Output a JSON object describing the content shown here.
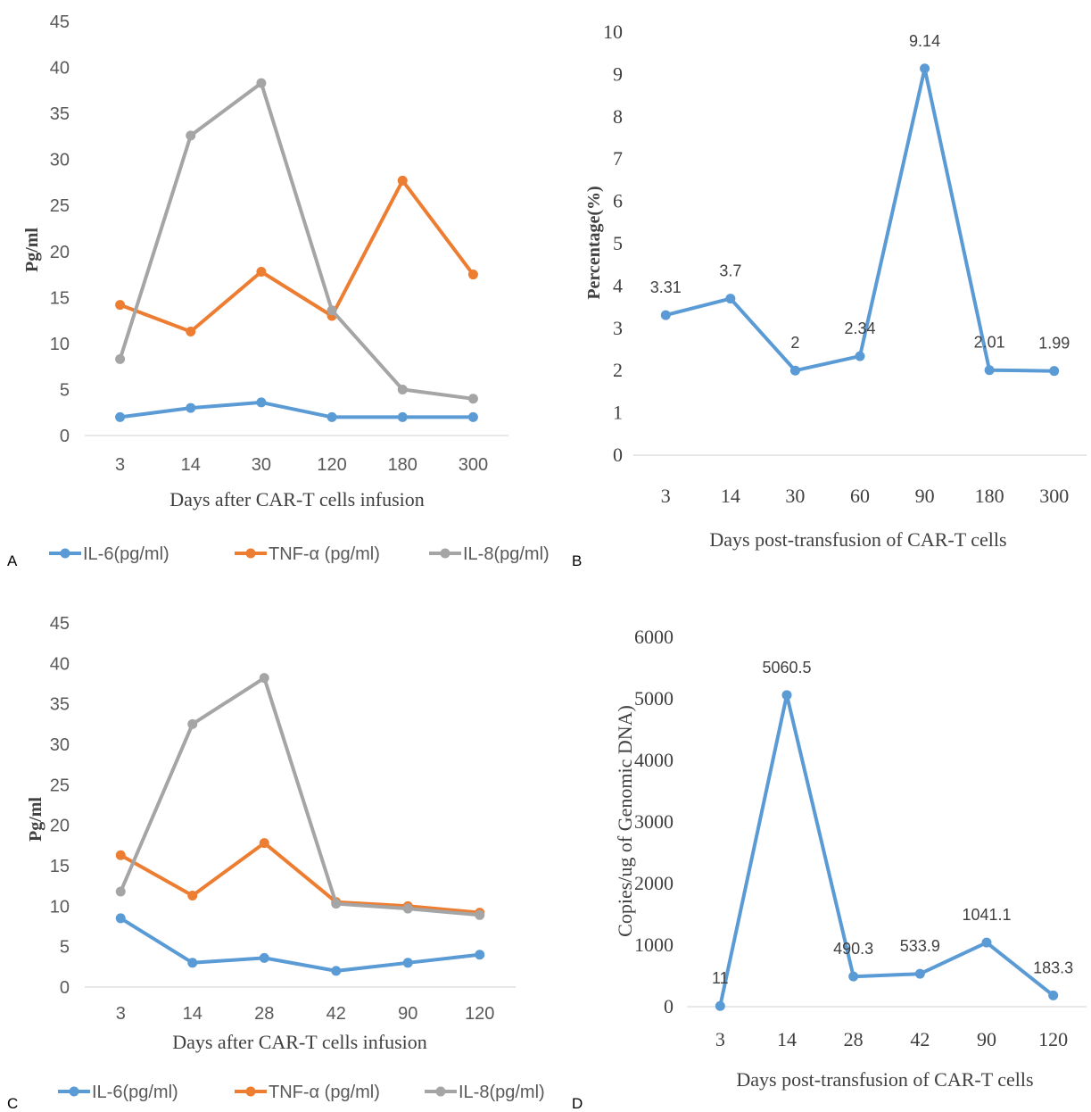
{
  "chart_data": [
    {
      "panel": "A",
      "type": "line",
      "categories": [
        "3",
        "14",
        "30",
        "120",
        "180",
        "300"
      ],
      "xlabel": "Days after CAR-T cells infusion",
      "ylabel": "Pg/ml",
      "ylim": [
        0,
        45
      ],
      "yticks": [
        "0",
        "5",
        "10",
        "15",
        "20",
        "25",
        "30",
        "35",
        "40",
        "45"
      ],
      "grid": false,
      "legend_position": "bottom",
      "series": [
        {
          "name": "IL-6(pg/ml)",
          "color": "#5B9BD5",
          "values": [
            2.0,
            3.0,
            3.6,
            2.0,
            2.0,
            2.0
          ]
        },
        {
          "name": "TNF-α (pg/ml)",
          "color": "#ED7D31",
          "values": [
            14.2,
            11.3,
            17.8,
            13.0,
            27.7,
            17.5
          ]
        },
        {
          "name": "IL-8(pg/ml)",
          "color": "#A5A5A5",
          "values": [
            8.3,
            32.6,
            38.3,
            13.6,
            5.0,
            4.0
          ]
        }
      ]
    },
    {
      "panel": "B",
      "type": "line",
      "categories": [
        "3",
        "14",
        "30",
        "60",
        "90",
        "180",
        "300"
      ],
      "xlabel": "Days post-transfusion of CAR-T cells",
      "ylabel": "Percentage(%)",
      "ylim": [
        0,
        10
      ],
      "yticks": [
        "0",
        "1",
        "2",
        "3",
        "4",
        "5",
        "6",
        "7",
        "8",
        "9",
        "10"
      ],
      "grid": false,
      "series": [
        {
          "color": "#5B9BD5",
          "values": [
            3.31,
            3.7,
            2,
            2.34,
            9.14,
            2.01,
            1.99
          ],
          "labels": [
            "3.31",
            "3.7",
            "2",
            "2.34",
            "9.14",
            "2.01",
            "1.99"
          ]
        }
      ]
    },
    {
      "panel": "C",
      "type": "line",
      "categories": [
        "3",
        "14",
        "28",
        "42",
        "90",
        "120"
      ],
      "xlabel": "Days after CAR-T cells infusion",
      "ylabel": "Pg/ml",
      "ylim": [
        0,
        45
      ],
      "yticks": [
        "0",
        "5",
        "10",
        "15",
        "20",
        "25",
        "30",
        "35",
        "40",
        "45"
      ],
      "grid": false,
      "legend_position": "bottom",
      "series": [
        {
          "name": "IL-6(pg/ml)",
          "color": "#5B9BD5",
          "values": [
            8.5,
            3.0,
            3.6,
            2.0,
            3.0,
            4.0
          ]
        },
        {
          "name": "TNF-α (pg/ml)",
          "color": "#ED7D31",
          "values": [
            16.3,
            11.3,
            17.8,
            10.5,
            10.0,
            9.2
          ]
        },
        {
          "name": "IL-8(pg/ml)",
          "color": "#A5A5A5",
          "values": [
            11.8,
            32.5,
            38.2,
            10.3,
            9.7,
            8.9
          ]
        }
      ]
    },
    {
      "panel": "D",
      "type": "line",
      "categories": [
        "3",
        "14",
        "28",
        "42",
        "90",
        "120"
      ],
      "xlabel": "Days post-transfusion of CAR-T cells",
      "ylabel": "Copies/ug of Genomic DNA)",
      "ylim": [
        0,
        6000
      ],
      "yticks": [
        "0",
        "1000",
        "2000",
        "3000",
        "4000",
        "5000",
        "6000"
      ],
      "grid": false,
      "series": [
        {
          "color": "#5B9BD5",
          "values": [
            11,
            5060.5,
            490.3,
            533.9,
            1041.1,
            183.3
          ],
          "labels": [
            "11",
            "5060.5",
            "490.3",
            "533.9",
            "1041.1",
            "183.3"
          ]
        }
      ]
    }
  ]
}
